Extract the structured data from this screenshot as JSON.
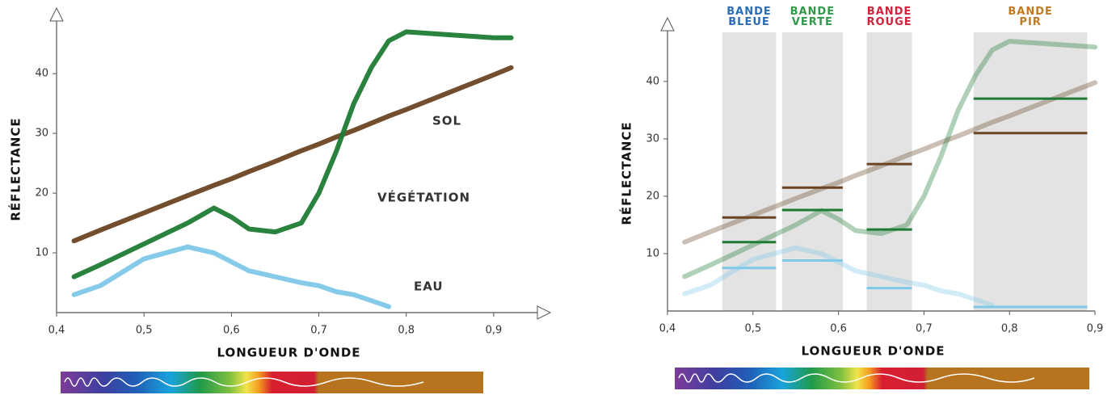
{
  "chart_data": [
    {
      "type": "line",
      "x_label": "LONGUEUR D'ONDE",
      "y_label": "RÉFLECTANCE",
      "x": [
        0.42,
        0.45,
        0.5,
        0.55,
        0.58,
        0.6,
        0.62,
        0.65,
        0.68,
        0.7,
        0.72,
        0.74,
        0.76,
        0.78,
        0.8,
        0.85,
        0.9,
        0.92
      ],
      "xlim": [
        0.4,
        0.95
      ],
      "ylim": [
        0,
        48
      ],
      "xticks": [
        {
          "value": 0.4,
          "label": "0,4"
        },
        {
          "value": 0.5,
          "label": "0,5"
        },
        {
          "value": 0.6,
          "label": "0,6"
        },
        {
          "value": 0.7,
          "label": "0,7"
        },
        {
          "value": 0.8,
          "label": "0,8"
        },
        {
          "value": 0.9,
          "label": "0,9"
        }
      ],
      "yticks": [
        10,
        20,
        30,
        40
      ],
      "series": [
        {
          "name": "SOL",
          "color": "#6b4423",
          "values": [
            12,
            13.8,
            16.7,
            19.6,
            21.3,
            22.4,
            23.6,
            25.3,
            27.1,
            28.2,
            29.4,
            30.5,
            31.7,
            32.9,
            34,
            36.9,
            39.8,
            41
          ]
        },
        {
          "name": "VÉGÉTATION",
          "color": "#1e7b34",
          "values": [
            6,
            8,
            11.5,
            15,
            17.5,
            16,
            14,
            13.5,
            15,
            20,
            27,
            35,
            41,
            45.5,
            47,
            46.5,
            46,
            46
          ]
        },
        {
          "name": "EAU",
          "color": "#7ec8e8",
          "values": [
            3,
            4.5,
            9,
            11,
            10,
            8.5,
            7,
            6,
            5,
            4.5,
            3.5,
            3,
            2,
            1,
            null,
            null,
            null,
            null
          ]
        }
      ]
    },
    {
      "type": "line",
      "x_label": "LONGUEUR D'ONDE",
      "y_label": "RÉFLECTANCE",
      "x": [
        0.42,
        0.45,
        0.5,
        0.55,
        0.58,
        0.6,
        0.62,
        0.65,
        0.68,
        0.7,
        0.72,
        0.74,
        0.76,
        0.78,
        0.8,
        0.85,
        0.9
      ],
      "xlim": [
        0.4,
        0.9
      ],
      "ylim": [
        0,
        48
      ],
      "xticks": [
        {
          "value": 0.4,
          "label": "0,4"
        },
        {
          "value": 0.5,
          "label": "0,5"
        },
        {
          "value": 0.6,
          "label": "0,6"
        },
        {
          "value": 0.7,
          "label": "0,7"
        },
        {
          "value": 0.8,
          "label": "0,8"
        },
        {
          "value": 0.9,
          "label": "0,9"
        }
      ],
      "yticks": [
        10,
        20,
        30,
        40
      ],
      "bands": [
        {
          "label": "BANDE BLEUE",
          "color": "#2a6db5",
          "start": 0.464,
          "end": 0.527
        },
        {
          "label": "BANDE VERTE",
          "color": "#2e9a4a",
          "start": 0.534,
          "end": 0.605
        },
        {
          "label": "BANDE ROUGE",
          "color": "#d2213a",
          "start": 0.633,
          "end": 0.686
        },
        {
          "label": "BANDE PIR",
          "color": "#c07a22",
          "start": 0.758,
          "end": 0.891
        }
      ],
      "series": [
        {
          "color": "#6b4423",
          "values": [
            12,
            13.8,
            16.7,
            19.6,
            21.3,
            22.4,
            23.6,
            25.3,
            27.1,
            28.2,
            29.4,
            30.5,
            31.7,
            32.9,
            34,
            36.9,
            39.8
          ],
          "band_values": [
            16.3,
            21.5,
            25.6,
            31
          ]
        },
        {
          "color": "#1e7b34",
          "values": [
            6,
            8,
            11.5,
            15,
            17.5,
            16,
            14,
            13.5,
            15,
            20,
            27,
            35,
            41,
            45.5,
            47,
            46.5,
            46
          ],
          "band_values": [
            12,
            17.6,
            14.2,
            37
          ]
        },
        {
          "color": "#7ec8e8",
          "values": [
            3,
            4.5,
            9,
            11,
            10,
            8.5,
            7,
            6,
            5,
            4.5,
            3.5,
            3,
            2,
            1,
            null,
            null,
            null
          ],
          "band_values": [
            7.5,
            8.8,
            4,
            0.7
          ]
        }
      ]
    }
  ]
}
